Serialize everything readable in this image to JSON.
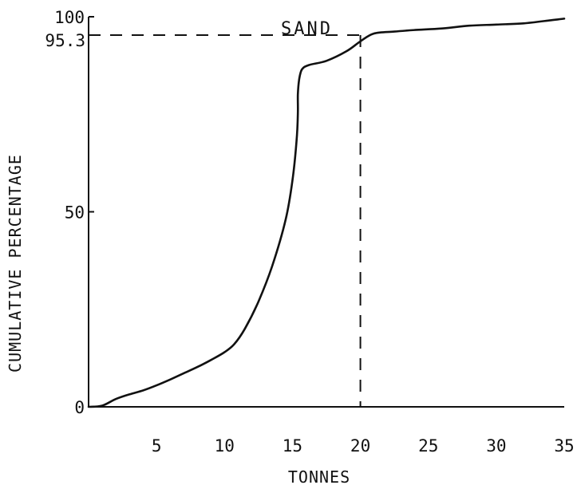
{
  "chart_data": {
    "type": "line",
    "title": "",
    "xlabel": "TONNES",
    "ylabel": "CUMULATIVE PERCENTAGE",
    "xlim": [
      0,
      35
    ],
    "ylim": [
      0,
      100
    ],
    "xticks": [
      5,
      10,
      15,
      20,
      25,
      30,
      35
    ],
    "xtick_labels": [
      "5",
      "10",
      "15",
      "20",
      "25",
      "30",
      "35"
    ],
    "yticks": [
      0,
      50,
      100
    ],
    "ytick_labels": [
      "0",
      "50",
      "100"
    ],
    "grid": false,
    "series": [
      {
        "name": "SAND",
        "points": [
          [
            0,
            0
          ],
          [
            1,
            0.3
          ],
          [
            2,
            2
          ],
          [
            3,
            3.2
          ],
          [
            4,
            4.2
          ],
          [
            5,
            5.5
          ],
          [
            6,
            7
          ],
          [
            7,
            8.6
          ],
          [
            8,
            10.2
          ],
          [
            9,
            12
          ],
          [
            10,
            14
          ],
          [
            10.7,
            16
          ],
          [
            11.5,
            20
          ],
          [
            12.5,
            27
          ],
          [
            13.5,
            36
          ],
          [
            14.5,
            48
          ],
          [
            15.0,
            58
          ],
          [
            15.3,
            68
          ],
          [
            15.4,
            75
          ],
          [
            15.4,
            80
          ],
          [
            15.5,
            84
          ],
          [
            15.7,
            86.5
          ],
          [
            16.2,
            87.6
          ],
          [
            17.5,
            88.7
          ],
          [
            19.0,
            91.2
          ],
          [
            20.0,
            93.7
          ],
          [
            21.0,
            95.7
          ],
          [
            22.5,
            96.2
          ],
          [
            24,
            96.6
          ],
          [
            26,
            97.0
          ],
          [
            28,
            97.7
          ],
          [
            30,
            98.0
          ],
          [
            32,
            98.3
          ],
          [
            34,
            99.1
          ],
          [
            35,
            99.5
          ]
        ]
      }
    ],
    "annotations": {
      "series_label": "SAND",
      "reference_y_label": "95.3",
      "reference_y": 95.3,
      "reference_x": 20
    }
  }
}
